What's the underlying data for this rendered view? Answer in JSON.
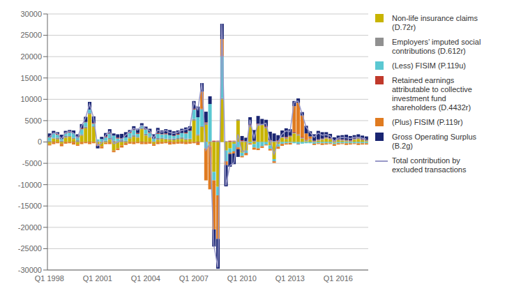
{
  "chart_data": {
    "type": "bar",
    "stacked": true,
    "grid": true,
    "categories": [
      "Q1 1998",
      null,
      null,
      null,
      null,
      null,
      null,
      null,
      null,
      null,
      null,
      null,
      "Q1 2001",
      null,
      null,
      null,
      null,
      null,
      null,
      null,
      null,
      null,
      null,
      null,
      "Q1 2004",
      null,
      null,
      null,
      null,
      null,
      null,
      null,
      null,
      null,
      null,
      null,
      "Q1 2007",
      null,
      null,
      null,
      null,
      null,
      null,
      null,
      null,
      null,
      null,
      null,
      "Q1 2010",
      null,
      null,
      null,
      null,
      null,
      null,
      null,
      null,
      null,
      null,
      null,
      "Q1 2013",
      null,
      null,
      null,
      null,
      null,
      null,
      null,
      null,
      null,
      null,
      null,
      "Q1 2016",
      null,
      null,
      null,
      null,
      null,
      null,
      null
    ],
    "ylim": [
      -30000,
      30000
    ],
    "yticks": [
      -30000,
      -25000,
      -20000,
      -15000,
      -10000,
      -5000,
      0,
      5000,
      10000,
      15000,
      20000,
      25000,
      30000
    ],
    "series": [
      {
        "name": "Non-life insurance claims\n(D.72r)",
        "type": "bar",
        "color": "#c8b400",
        "values": [
          -500,
          800,
          600,
          -400,
          1000,
          1200,
          700,
          -600,
          1500,
          3200,
          6500,
          3500,
          -500,
          -1000,
          -200,
          500,
          -2000,
          -1500,
          -800,
          -300,
          800,
          1200,
          1000,
          3000,
          1500,
          1000,
          -500,
          500,
          700,
          600,
          500,
          400,
          600,
          700,
          500,
          600,
          5000,
          1500,
          3500,
          4000,
          -1000,
          -7000,
          -10500,
          10000,
          -2000,
          -1500,
          -400,
          5000,
          -2500,
          -2000,
          3500,
          -500,
          3800,
          4000,
          3200,
          -800,
          -4000,
          -500,
          1000,
          700,
          1200,
          2000,
          1500,
          800,
          200,
          500,
          -100,
          300,
          500,
          800,
          600,
          -200,
          400,
          300,
          200,
          100,
          500,
          700,
          400,
          200
        ]
      },
      {
        "name": "Employers’ imputed social\ncontributions (D.612r)",
        "type": "bar",
        "color": "#909090",
        "values": [
          300,
          200,
          400,
          300,
          400,
          200,
          300,
          400,
          300,
          400,
          300,
          200,
          200,
          100,
          300,
          400,
          300,
          200,
          400,
          300,
          300,
          400,
          200,
          300,
          400,
          300,
          200,
          400,
          300,
          200,
          300,
          400,
          300,
          400,
          300,
          200,
          400,
          300,
          200,
          400,
          200,
          100,
          200,
          300,
          200,
          100,
          200,
          300,
          200,
          200,
          300,
          200,
          300,
          200,
          300,
          300,
          200,
          200,
          200,
          300,
          200,
          200,
          300,
          200,
          200,
          200,
          200,
          200,
          200,
          200,
          200,
          200,
          200,
          200,
          200,
          200,
          200,
          200,
          200,
          200
        ]
      },
      {
        "name": "(Less) FISIM (P.119u)",
        "type": "bar",
        "color": "#5bc8d2",
        "values": [
          800,
          1000,
          700,
          400,
          600,
          800,
          1000,
          700,
          1200,
          1000,
          800,
          600,
          400,
          600,
          800,
          1000,
          1200,
          600,
          400,
          800,
          1000,
          1200,
          700,
          600,
          1000,
          800,
          600,
          1000,
          800,
          1000,
          800,
          600,
          800,
          1000,
          1200,
          1800,
          2200,
          4000,
          4000,
          -1500,
          8700,
          -2000,
          -2000,
          9800,
          -2500,
          -1000,
          -1800,
          -1200,
          -800,
          -600,
          -300,
          -800,
          -1500,
          -1000,
          -600,
          -800,
          -500,
          -600,
          -400,
          -300,
          -200,
          -300,
          -500,
          -400,
          -300,
          -300,
          -300,
          -300,
          -300,
          -300,
          -300,
          -300,
          -300,
          -300,
          -300,
          -300,
          -300,
          -300,
          -300,
          -300
        ]
      },
      {
        "name": "Retained earnings\nattributable to collective\ninvestment fund\nshareholders (D.4432r)",
        "type": "bar",
        "color": "#c0392b",
        "values": [
          100,
          -100,
          200,
          -100,
          100,
          200,
          -100,
          100,
          200,
          100,
          -100,
          200,
          -200,
          -100,
          200,
          100,
          -100,
          200,
          100,
          -100,
          200,
          100,
          200,
          -100,
          100,
          200,
          -100,
          200,
          100,
          200,
          -200,
          100,
          200,
          -100,
          200,
          100,
          200,
          -200,
          100,
          200,
          -100,
          200,
          100,
          200,
          -100,
          200,
          100,
          -100,
          200,
          -100,
          200,
          100,
          200,
          -100,
          200,
          100,
          -100,
          200,
          -100,
          200,
          100,
          200,
          -100,
          200,
          100,
          100,
          100,
          100,
          100,
          100,
          100,
          100,
          100,
          100,
          100,
          100,
          100,
          100,
          100,
          100
        ]
      },
      {
        "name": "(Plus) FISIM (P.119r)",
        "type": "bar",
        "color": "#e07b20",
        "values": [
          -300,
          -400,
          -300,
          -500,
          -400,
          -300,
          -500,
          -300,
          -500,
          -300,
          -400,
          -300,
          -200,
          -400,
          -300,
          -500,
          -300,
          -400,
          -500,
          -300,
          -400,
          -500,
          -300,
          -400,
          -500,
          -400,
          -300,
          -500,
          -400,
          -300,
          -400,
          -500,
          -400,
          -300,
          -500,
          -400,
          -300,
          -500,
          4000,
          -7500,
          -10000,
          -11500,
          -10200,
          3800,
          -800,
          -300,
          -500,
          -400,
          -300,
          -400,
          -300,
          -500,
          -400,
          -300,
          -200,
          -400,
          -300,
          -500,
          -400,
          -300,
          -400,
          6000,
          7400,
          5000,
          1500,
          500,
          -300,
          -200,
          -400,
          -300,
          -200,
          -400,
          -300,
          -200,
          -400,
          -300,
          -200,
          -400,
          -300,
          -300
        ]
      },
      {
        "name": "Gross Operating Surplus\n(B.2g)",
        "type": "bar",
        "color": "#1a2572",
        "values": [
          800,
          600,
          400,
          1000,
          500,
          400,
          700,
          600,
          1000,
          1200,
          1800,
          1500,
          -600,
          500,
          800,
          1000,
          500,
          800,
          1000,
          1200,
          500,
          800,
          1000,
          500,
          600,
          800,
          1000,
          1200,
          800,
          1000,
          1200,
          1000,
          800,
          1000,
          1200,
          1000,
          1800,
          2500,
          2000,
          2500,
          1800,
          -4000,
          -7000,
          3600,
          -5000,
          -3000,
          -2500,
          -1800,
          1000,
          800,
          1800,
          2500,
          1800,
          1200,
          1500,
          2000,
          1800,
          1200,
          1500,
          2000,
          1500,
          1200,
          1000,
          800,
          1800,
          1200,
          1500,
          2000,
          1500,
          1200,
          1000,
          800,
          800,
          1000,
          1200,
          1000,
          800,
          800,
          800,
          800
        ]
      },
      {
        "name": "Total contribution by\nexcluded transactions",
        "type": "line",
        "color": "#9898c8",
        "values": [
          1200,
          2100,
          2000,
          700,
          2200,
          2500,
          2100,
          900,
          3700,
          5600,
          8900,
          5700,
          -900,
          -300,
          1600,
          2500,
          -400,
          -100,
          600,
          1600,
          2400,
          3200,
          2800,
          3900,
          3100,
          2700,
          900,
          2800,
          2300,
          2700,
          2200,
          2000,
          2300,
          2700,
          2900,
          3300,
          9300,
          7600,
          13800,
          -1900,
          -400,
          -24200,
          -29400,
          27700,
          -10200,
          -5500,
          -4900,
          1800,
          -2200,
          -2100,
          5200,
          1000,
          4200,
          4000,
          4400,
          400,
          -2900,
          0,
          1800,
          2600,
          2400,
          9300,
          9600,
          6600,
          3500,
          2200,
          1100,
          2100,
          1600,
          1700,
          1400,
          200,
          900,
          1100,
          1000,
          800,
          1100,
          1100,
          900,
          700
        ]
      }
    ]
  }
}
